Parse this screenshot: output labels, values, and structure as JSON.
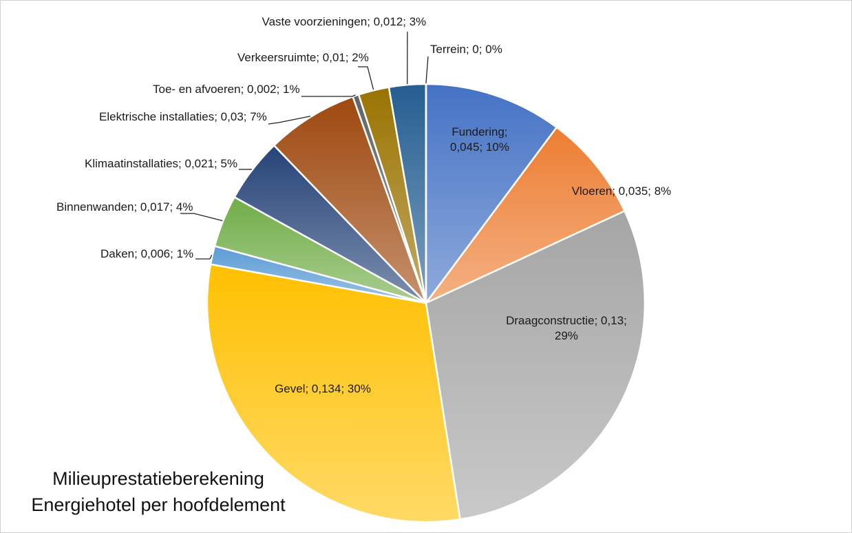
{
  "chart_data": {
    "type": "pie",
    "title": "Milieuprestatieberekening Energiehotel per hoofdelement",
    "categories": [
      "Fundering",
      "Vloeren",
      "Draagconstructie",
      "Gevel",
      "Daken",
      "Binnenwanden",
      "Klimaatinstallaties",
      "Elektrische installaties",
      "Toe- en afvoeren",
      "Verkeersruimte",
      "Vaste voorzieningen",
      "Terrein"
    ],
    "values": [
      0.045,
      0.035,
      0.13,
      0.134,
      0.006,
      0.017,
      0.021,
      0.03,
      0.002,
      0.01,
      0.012,
      0
    ],
    "value_labels": [
      "Fundering; 0,045; 10%",
      "Vloeren; 0,035; 8%",
      "Draagconstructie; 0,13; 29%",
      "Gevel; 0,134; 30%",
      "Daken; 0,006; 1%",
      "Binnenwanden; 0,017; 4%",
      "Klimaatinstallaties; 0,021; 5%",
      "Elektrische installaties; 0,03; 7%",
      "Toe- en afvoeren; 0,002; 1%",
      "Verkeersruimte; 0,01; 2%",
      "Vaste voorzieningen; 0,012; 3%",
      "Terrein; 0; 0%"
    ],
    "colors": [
      "#4472c4",
      "#ed7d31",
      "#a5a5a5",
      "#ffc000",
      "#5b9bd5",
      "#70ad47",
      "#264478",
      "#9e480e",
      "#636363",
      "#997300",
      "#255e91",
      "#43682b"
    ]
  }
}
